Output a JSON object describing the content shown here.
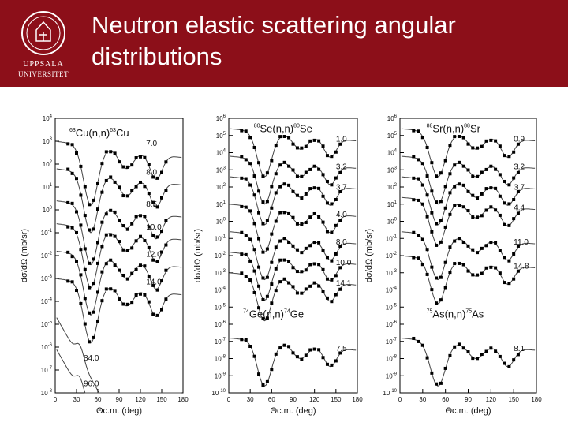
{
  "header": {
    "title_line1": "Neutron elastic scattering angular",
    "title_line2": "distributions",
    "logo_text_line1": "UPPSALA",
    "logo_text_line2": "UNIVERSITET",
    "background_color": "#8c0f19",
    "logo_icon": "university-seal-icon"
  },
  "chart_data": [
    {
      "type": "scatter",
      "xlabel": "Θc.m. (deg)",
      "ylabel": "dσ/dΩ (mb/sr)",
      "xlim": [
        0,
        180
      ],
      "xticks": [
        0,
        30,
        60,
        90,
        120,
        150,
        180
      ],
      "yscale": "log",
      "ylim_exp": [
        -8,
        4
      ],
      "reaction_labels": [
        {
          "text": "63Cu(n,n)63Cu",
          "mass": "63",
          "pre": "Cu(n,n)",
          "mass2": "63",
          "post": "Cu",
          "x": 20,
          "exp": 3.2
        }
      ],
      "series": [
        {
          "label": "7.0",
          "offset": 2.0,
          "label_x": 128,
          "label_dy": 0.6,
          "points": true
        },
        {
          "label": "8.0",
          "offset": 0.8,
          "label_x": 128,
          "label_dy": 0.55,
          "points": true
        },
        {
          "label": "8.5",
          "offset": -0.6,
          "label_x": 128,
          "label_dy": 0.55,
          "points": true
        },
        {
          "label": "10.0",
          "offset": -1.6,
          "label_x": 128,
          "label_dy": 0.55,
          "points": true
        },
        {
          "label": "12.0",
          "offset": -2.8,
          "label_x": 128,
          "label_dy": 0.55,
          "points": true
        },
        {
          "label": "14.0",
          "offset": -4.0,
          "label_x": 128,
          "label_dy": 0.55,
          "points": true
        },
        {
          "label": "84.0",
          "offset": -5.6,
          "label_x": 40,
          "label_dy": -0.2,
          "points": false
        },
        {
          "label": "96.0",
          "offset": -7.0,
          "label_x": 40,
          "label_dy": -0.5,
          "points": false
        }
      ]
    },
    {
      "type": "scatter",
      "xlabel": "Θc.m. (deg)",
      "ylabel": "dσ/dΩ (mb/sr)",
      "xlim": [
        0,
        180
      ],
      "xticks": [
        0,
        30,
        60,
        90,
        120,
        150,
        180
      ],
      "yscale": "log",
      "ylim_exp": [
        -10,
        6
      ],
      "reaction_labels": [
        {
          "text": "80Se(n,n)80Se",
          "mass": "80",
          "pre": "Se(n,n)",
          "mass2": "80",
          "post": "Se",
          "x": 35,
          "exp": 5.2
        },
        {
          "text": "74Ge(n,n)74Ge",
          "mass": "74",
          "pre": "Ge(n,n)",
          "mass2": "74",
          "post": "Ge",
          "x": 20,
          "exp": -5.6
        }
      ],
      "series": [
        {
          "label": "1.0",
          "offset": 4.4,
          "label_x": 150,
          "label_dy": 0.55,
          "points": true
        },
        {
          "label": "3.2",
          "offset": 2.8,
          "label_x": 150,
          "label_dy": 0.55,
          "points": true
        },
        {
          "label": "3.7",
          "offset": 1.6,
          "label_x": 150,
          "label_dy": 0.55,
          "points": true
        },
        {
          "label": "4.0",
          "offset": 0.0,
          "label_x": 150,
          "label_dy": 0.55,
          "points": true
        },
        {
          "label": "8.0",
          "offset": -1.6,
          "label_x": 150,
          "label_dy": 0.55,
          "points": true
        },
        {
          "label": "10.0",
          "offset": -2.8,
          "label_x": 150,
          "label_dy": 0.55,
          "points": true
        },
        {
          "label": "14.1",
          "offset": -4.0,
          "label_x": 150,
          "label_dy": 0.55,
          "points": true
        },
        {
          "label": "7.5",
          "offset": -7.8,
          "label_x": 150,
          "label_dy": 0.55,
          "points": true
        }
      ]
    },
    {
      "type": "scatter",
      "xlabel": "Θc.m. (deg)",
      "ylabel": "dσ/dΩ (mb/sr)",
      "xlim": [
        0,
        180
      ],
      "xticks": [
        0,
        30,
        60,
        90,
        120,
        150,
        180
      ],
      "yscale": "log",
      "ylim_exp": [
        -10,
        6
      ],
      "reaction_labels": [
        {
          "text": "88Sr(n,n)88Sr",
          "mass": "88",
          "pre": "Sr(n,n)",
          "mass2": "88",
          "post": "Sr",
          "x": 35,
          "exp": 5.2
        },
        {
          "text": "75As(n,n)75As",
          "mass": "75",
          "pre": "As(n,n)",
          "mass2": "75",
          "post": "As",
          "x": 35,
          "exp": -5.6
        }
      ],
      "series": [
        {
          "label": "0.9",
          "offset": 4.4,
          "label_x": 150,
          "label_dy": 0.55,
          "points": true
        },
        {
          "label": "3.2",
          "offset": 2.8,
          "label_x": 150,
          "label_dy": 0.55,
          "points": true
        },
        {
          "label": "3.7",
          "offset": 1.6,
          "label_x": 150,
          "label_dy": 0.55,
          "points": true
        },
        {
          "label": "4.4",
          "offset": 0.4,
          "label_x": 150,
          "label_dy": 0.55,
          "points": true
        },
        {
          "label": "11.0",
          "offset": -1.6,
          "label_x": 150,
          "label_dy": 0.55,
          "points": true
        },
        {
          "label": "14.8",
          "offset": -3.0,
          "label_x": 150,
          "label_dy": 0.55,
          "points": true
        },
        {
          "label": "8.1",
          "offset": -7.8,
          "label_x": 150,
          "label_dy": 0.55,
          "points": true
        }
      ]
    }
  ]
}
